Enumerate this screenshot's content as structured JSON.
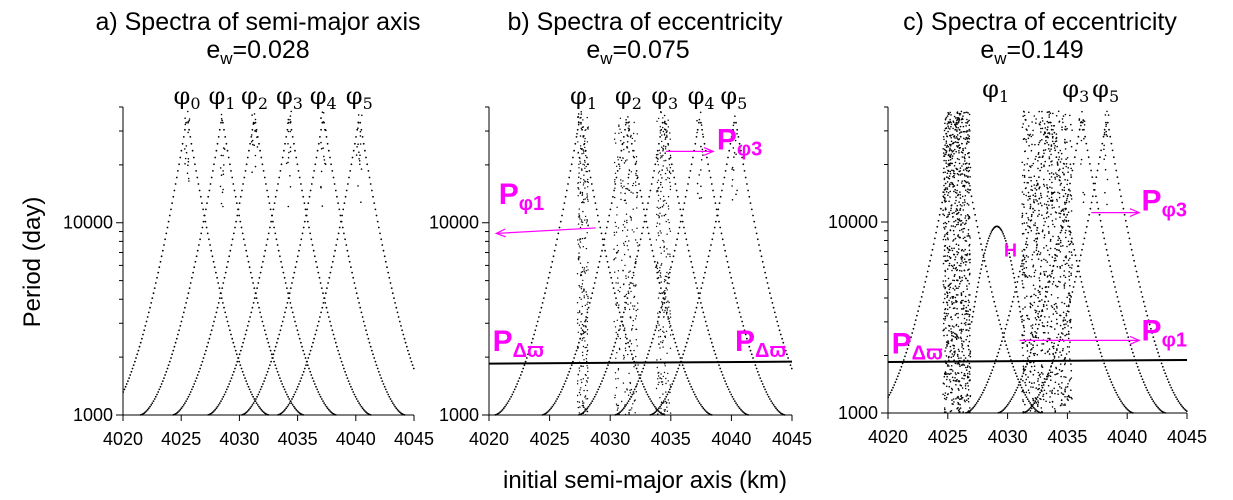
{
  "x_axis_label": "initial semi-major axis (km)",
  "y_axis_label": "Period (day)",
  "colors": {
    "points": "#000000",
    "annotation": "#ff00ff"
  },
  "chart_data": [
    {
      "type": "scatter",
      "title": "a)  Spectra of semi-major axis",
      "subtitle": "e_w=0.028",
      "xlim": [
        4020,
        4045
      ],
      "ylim": [
        1000,
        40000
      ],
      "yscale": "log",
      "xticks": [
        "4020",
        "4025",
        "4030",
        "4035",
        "4040",
        "4045"
      ],
      "yticks": [
        "1000",
        "10000"
      ],
      "resonance_labels": [
        {
          "name": "φ",
          "sub": "0",
          "x": 4025.5
        },
        {
          "name": "φ",
          "sub": "1",
          "x": 4028.5
        },
        {
          "name": "φ",
          "sub": "2",
          "x": 4031.3
        },
        {
          "name": "φ",
          "sub": "3",
          "x": 4034.3
        },
        {
          "name": "φ",
          "sub": "4",
          "x": 4037.2
        },
        {
          "name": "φ",
          "sub": "5",
          "x": 4040.3
        }
      ],
      "peaks": [
        4025.5,
        4028.5,
        4031.3,
        4034.3,
        4037.2,
        4040.3
      ],
      "annotations": []
    },
    {
      "type": "scatter",
      "title": "b) Spectra of eccentricity",
      "subtitle": "e_w=0.075",
      "xlim": [
        4020,
        4045
      ],
      "ylim": [
        1000,
        40000
      ],
      "yscale": "log",
      "xticks": [
        "4020",
        "4025",
        "4030",
        "4035",
        "4040",
        "4045"
      ],
      "yticks": [
        "1000",
        "10000"
      ],
      "resonance_labels": [
        {
          "name": "φ",
          "sub": "1",
          "x": 4027.8
        },
        {
          "name": "φ",
          "sub": "2",
          "x": 4031.5
        },
        {
          "name": "φ",
          "sub": "3",
          "x": 4034.5
        },
        {
          "name": "φ",
          "sub": "4",
          "x": 4037.5
        },
        {
          "name": "φ",
          "sub": "5",
          "x": 4040.2
        }
      ],
      "peaks": [
        4027.5,
        4031.4,
        4034.4,
        4037.4,
        4040.3
      ],
      "horizontal_line": 1850,
      "annotations": [
        {
          "main": "P",
          "sub": "φ1",
          "x": 4020.8,
          "y": 12500
        },
        {
          "main": "P",
          "sub": "φ3",
          "x": 4038.8,
          "y": 24000
        },
        {
          "main": "P",
          "sub": "Δϖ",
          "x": 4020.3,
          "y": 2150
        },
        {
          "main": "P",
          "sub": "Δϖ",
          "x": 4040.3,
          "y": 2150
        }
      ]
    },
    {
      "type": "scatter",
      "title": "c) Spectra of eccentricity",
      "subtitle": "e_w=0.149",
      "xlim": [
        4020,
        4045
      ],
      "ylim": [
        1000,
        40000
      ],
      "yscale": "log",
      "xticks": [
        "4020",
        "4025",
        "4030",
        "4035",
        "4040",
        "4045"
      ],
      "yticks": [
        "1000",
        "10000"
      ],
      "resonance_labels": [
        {
          "name": "φ",
          "sub": "1",
          "x": 4029.0
        },
        {
          "name": "φ",
          "sub": "3",
          "x": 4035.7
        },
        {
          "name": "φ",
          "sub": "5",
          "x": 4038.2
        }
      ],
      "peaks": [
        4025.8,
        4033.5,
        4036.2,
        4038.3
      ],
      "horizontal_line": 1850,
      "annotations": [
        {
          "main": "P",
          "sub": "φ3",
          "x": 4041.2,
          "y": 11500
        },
        {
          "main": "P",
          "sub": "φ1",
          "x": 4041.2,
          "y": 2400
        },
        {
          "main": "P",
          "sub": "Δϖ",
          "x": 4020.3,
          "y": 2050
        },
        {
          "main": "H",
          "sub": "",
          "x": 4029.7,
          "y": 6600
        }
      ]
    }
  ]
}
